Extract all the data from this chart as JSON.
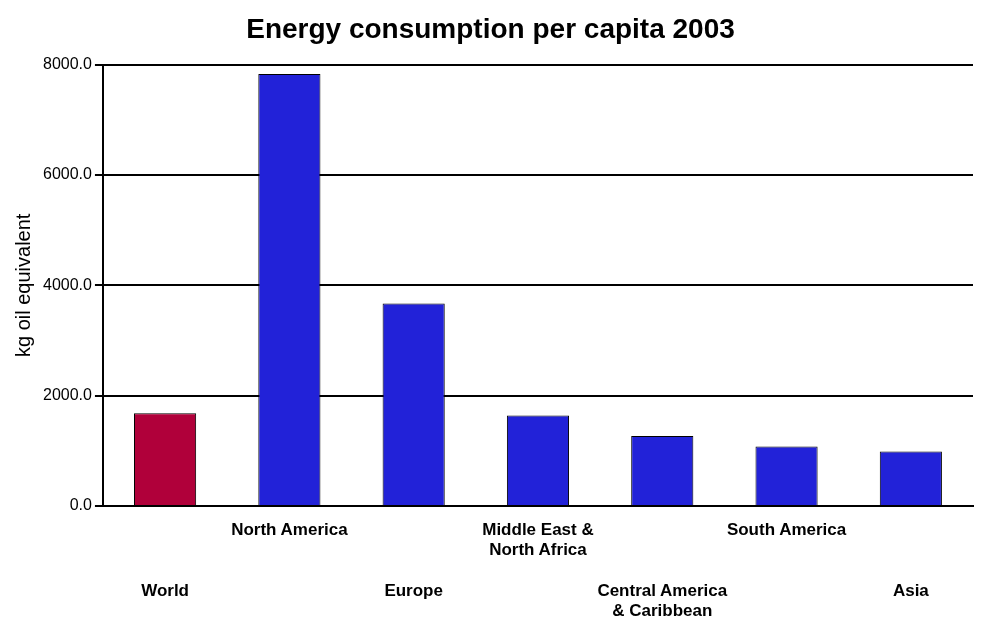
{
  "chart_data": {
    "type": "bar",
    "title": "Energy consumption per capita 2003",
    "ylabel": "kg oil equivalent",
    "categories": [
      "World",
      "North America",
      "Europe",
      "Middle East & North Africa",
      "Central America & Caribbean",
      "South America",
      "Asia"
    ],
    "values": [
      1680,
      7830,
      3670,
      1640,
      1270,
      1080,
      990
    ],
    "colors": [
      "#b0003a",
      "#2222d8",
      "#2222d8",
      "#2222d8",
      "#2222d8",
      "#2222d8",
      "#2222d8"
    ],
    "ylim": [
      0,
      8000
    ],
    "yticks": [
      {
        "value": 0,
        "label": "0.0"
      },
      {
        "value": 2000,
        "label": "2000.0"
      },
      {
        "value": 4000,
        "label": "4000.0"
      },
      {
        "value": 6000,
        "label": "6000.0"
      },
      {
        "value": 8000,
        "label": "8000.0"
      }
    ],
    "grid": "y",
    "legend": false
  }
}
